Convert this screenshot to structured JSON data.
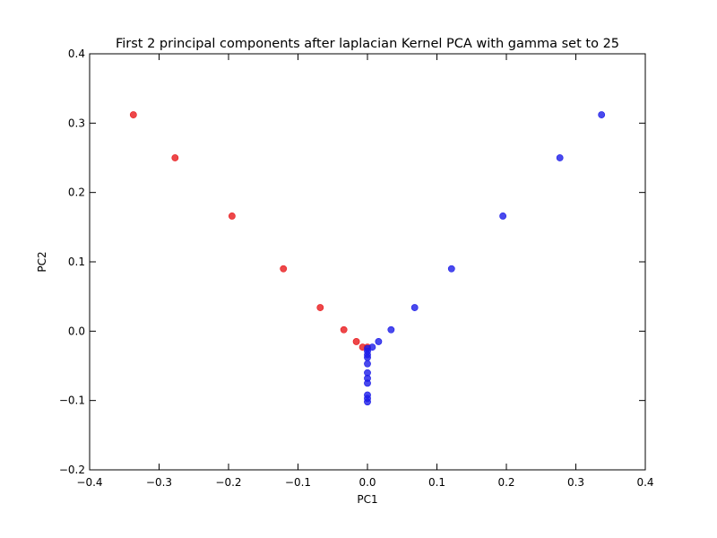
{
  "chart_data": {
    "type": "scatter",
    "title": "First 2 principal components after laplacian Kernel PCA with gamma set to 25",
    "xlabel": "PC1",
    "ylabel": "PC2",
    "xlim": [
      -0.4,
      0.4
    ],
    "ylim": [
      -0.2,
      0.4
    ],
    "xticks": [
      -0.4,
      -0.3,
      -0.2,
      -0.1,
      0.0,
      0.1,
      0.2,
      0.3,
      0.4
    ],
    "yticks": [
      -0.2,
      -0.1,
      0.0,
      0.1,
      0.2,
      0.3,
      0.4
    ],
    "xtick_labels": [
      "−0.4",
      "−0.3",
      "−0.2",
      "−0.1",
      "0.0",
      "0.1",
      "0.2",
      "0.3",
      "0.4"
    ],
    "ytick_labels": [
      "−0.2",
      "−0.1",
      "0.0",
      "0.1",
      "0.2",
      "0.3",
      "0.4"
    ],
    "grid": false,
    "legend": "none",
    "series": [
      {
        "color": "#e8191c",
        "points": [
          [
            -0.337,
            0.312
          ],
          [
            -0.277,
            0.25
          ],
          [
            -0.195,
            0.166
          ],
          [
            -0.121,
            0.09
          ],
          [
            -0.068,
            0.034
          ],
          [
            -0.034,
            0.002
          ],
          [
            -0.016,
            -0.015
          ],
          [
            -0.007,
            -0.023
          ],
          [
            0.0,
            -0.023
          ]
        ]
      },
      {
        "color": "#1c1ce8",
        "points": [
          [
            0.337,
            0.312
          ],
          [
            0.277,
            0.25
          ],
          [
            0.195,
            0.166
          ],
          [
            0.121,
            0.09
          ],
          [
            0.068,
            0.034
          ],
          [
            0.034,
            0.002
          ],
          [
            0.016,
            -0.015
          ],
          [
            0.007,
            -0.023
          ],
          [
            0.0,
            -0.025
          ],
          [
            0.0,
            -0.029
          ],
          [
            0.0,
            -0.034
          ],
          [
            0.0,
            -0.038
          ],
          [
            0.0,
            -0.047
          ],
          [
            0.0,
            -0.06
          ],
          [
            0.0,
            -0.068
          ],
          [
            0.0,
            -0.075
          ],
          [
            0.0,
            -0.092
          ],
          [
            0.0,
            -0.097
          ],
          [
            0.0,
            -0.102
          ]
        ]
      }
    ]
  }
}
